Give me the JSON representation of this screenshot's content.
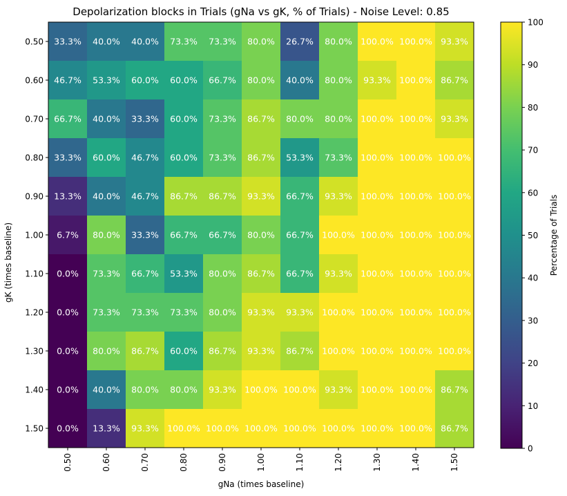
{
  "chart_data": {
    "type": "heatmap",
    "title": "Depolarization blocks in Trials (gNa vs gK, % of Trials) - Noise Level: 0.85",
    "xlabel": "gNa (times baseline)",
    "ylabel": "gK (times baseline)",
    "x_categories": [
      "0.50",
      "0.60",
      "0.70",
      "0.80",
      "0.90",
      "1.00",
      "1.10",
      "1.20",
      "1.30",
      "1.40",
      "1.50"
    ],
    "y_categories": [
      "0.50",
      "0.60",
      "0.70",
      "0.80",
      "0.90",
      "1.00",
      "1.10",
      "1.20",
      "1.30",
      "1.40",
      "1.50"
    ],
    "values": [
      [
        33.3,
        40.0,
        40.0,
        73.3,
        73.3,
        80.0,
        26.7,
        80.0,
        100.0,
        100.0,
        93.3
      ],
      [
        46.7,
        53.3,
        60.0,
        60.0,
        66.7,
        80.0,
        40.0,
        80.0,
        93.3,
        100.0,
        86.7
      ],
      [
        66.7,
        40.0,
        33.3,
        60.0,
        73.3,
        86.7,
        80.0,
        80.0,
        100.0,
        100.0,
        93.3
      ],
      [
        33.3,
        60.0,
        46.7,
        60.0,
        73.3,
        86.7,
        53.3,
        73.3,
        100.0,
        100.0,
        100.0
      ],
      [
        13.3,
        40.0,
        46.7,
        86.7,
        86.7,
        93.3,
        66.7,
        93.3,
        100.0,
        100.0,
        100.0
      ],
      [
        6.7,
        80.0,
        33.3,
        66.7,
        66.7,
        80.0,
        66.7,
        100.0,
        100.0,
        100.0,
        100.0
      ],
      [
        0.0,
        73.3,
        66.7,
        53.3,
        80.0,
        86.7,
        66.7,
        93.3,
        100.0,
        100.0,
        100.0
      ],
      [
        0.0,
        73.3,
        73.3,
        73.3,
        80.0,
        93.3,
        93.3,
        100.0,
        100.0,
        100.0,
        100.0
      ],
      [
        0.0,
        80.0,
        86.7,
        60.0,
        86.7,
        93.3,
        86.7,
        100.0,
        100.0,
        100.0,
        100.0
      ],
      [
        0.0,
        40.0,
        80.0,
        80.0,
        93.3,
        100.0,
        100.0,
        93.3,
        100.0,
        100.0,
        86.7
      ],
      [
        0.0,
        13.3,
        93.3,
        100.0,
        100.0,
        100.0,
        100.0,
        100.0,
        100.0,
        100.0,
        86.7
      ]
    ],
    "value_suffix": "%",
    "colormap": "viridis",
    "colorbar": {
      "label": "Percentage of Trials",
      "range": [
        0,
        100
      ],
      "ticks": [
        0,
        10,
        20,
        30,
        40,
        50,
        60,
        70,
        80,
        90,
        100
      ]
    },
    "grid": false
  }
}
